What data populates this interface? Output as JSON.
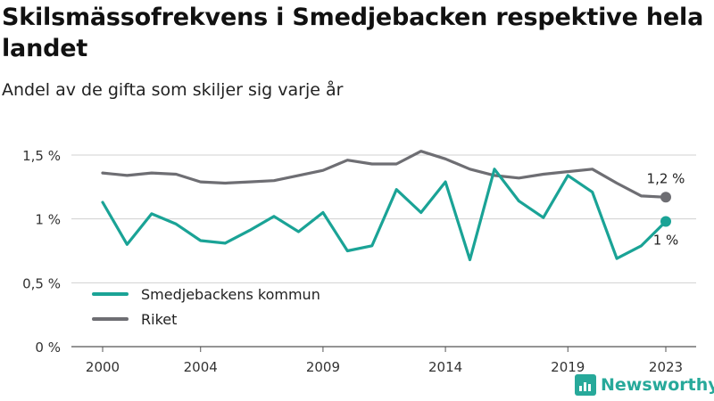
{
  "title": "Skilsmässofrekvens i Smedjebacken respektive hela landet",
  "subtitle": "Andel av de gifta som skiljer sig varje år",
  "brand": "Newsworthy",
  "chart_data": {
    "type": "line",
    "title": "Skilsmässofrekvens i Smedjebacken respektive hela landet",
    "subtitle": "Andel av de gifta som skiljer sig varje år",
    "xlabel": "",
    "ylabel": "",
    "x": [
      2000,
      2001,
      2002,
      2003,
      2004,
      2005,
      2006,
      2007,
      2008,
      2009,
      2010,
      2011,
      2012,
      2013,
      2014,
      2015,
      2016,
      2017,
      2018,
      2019,
      2020,
      2021,
      2022,
      2023
    ],
    "x_ticks": [
      2000,
      2004,
      2009,
      2014,
      2019,
      2023
    ],
    "x_tick_labels": [
      "2000",
      "2004",
      "2009",
      "2014",
      "2019",
      "2023"
    ],
    "ylim": [
      0,
      1.5
    ],
    "y_ticks": [
      0,
      0.5,
      1,
      1.5
    ],
    "y_tick_labels": [
      "0 %",
      "0,5 %",
      "1 %",
      "1,5 %"
    ],
    "grid": "horizontal",
    "legend_position": "bottom-left",
    "series": [
      {
        "name": "Smedjebackens kommun",
        "color": "#1aa396",
        "values": [
          1.13,
          0.8,
          1.04,
          0.96,
          0.83,
          0.81,
          0.91,
          1.02,
          0.9,
          1.05,
          0.75,
          0.79,
          1.23,
          1.05,
          1.29,
          0.68,
          1.39,
          1.14,
          1.01,
          1.34,
          1.21,
          0.69,
          0.79,
          0.98
        ],
        "end_label": "1 %"
      },
      {
        "name": "Riket",
        "color": "#6e6e73",
        "values": [
          1.36,
          1.34,
          1.36,
          1.35,
          1.29,
          1.28,
          1.29,
          1.3,
          1.34,
          1.38,
          1.46,
          1.43,
          1.43,
          1.53,
          1.47,
          1.39,
          1.34,
          1.32,
          1.35,
          1.37,
          1.39,
          1.28,
          1.18,
          1.17
        ],
        "end_label": "1,2 %"
      }
    ]
  }
}
